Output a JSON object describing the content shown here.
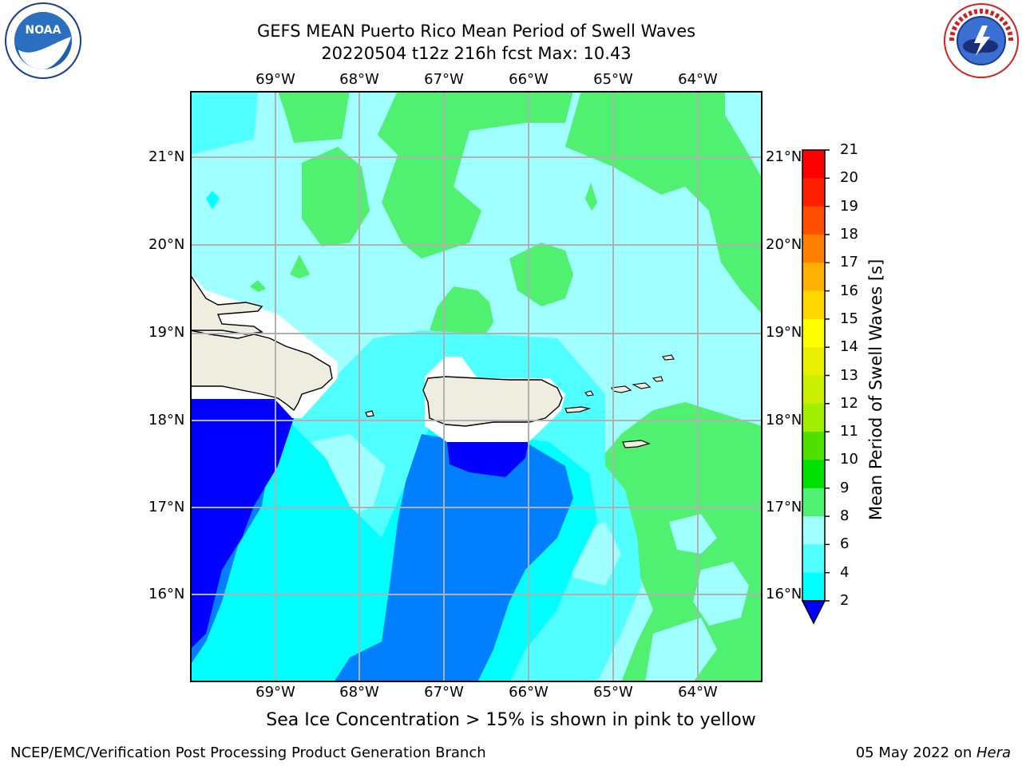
{
  "header": {
    "title_line1": "GEFS MEAN Puerto Rico Mean Period of Swell Waves",
    "title_line2": "20220504 t12z 216h fcst   Max: 10.43"
  },
  "logos": {
    "left": "NOAA",
    "right": "NATIONAL WEATHER SERVICE"
  },
  "map": {
    "lon_labels": [
      "69°W",
      "68°W",
      "67°W",
      "66°W",
      "65°W",
      "64°W"
    ],
    "lat_labels": [
      "21°N",
      "20°N",
      "19°N",
      "18°N",
      "17°N",
      "16°N"
    ]
  },
  "colorbar": {
    "label": "Mean Period of Swell Waves [s]",
    "ticks": [
      "2",
      "4",
      "6",
      "8",
      "9",
      "10",
      "11",
      "12",
      "13",
      "14",
      "15",
      "16",
      "17",
      "18",
      "19",
      "20",
      "21"
    ],
    "colors": [
      "#0000ff",
      "#0080ff",
      "#00ffff",
      "#50ffff",
      "#a0ffff",
      "#50f070",
      "#00e000",
      "#50e000",
      "#a0ee00",
      "#c8f000",
      "#e8f000",
      "#ffff00",
      "#ffd800",
      "#ffb000",
      "#ff8000",
      "#ff5000",
      "#ff2000",
      "#ff0000"
    ]
  },
  "chart_data": {
    "type": "heatmap",
    "title": "GEFS MEAN Puerto Rico Mean Period of Swell Waves",
    "subtitle": "20220504 t12z 216h fcst   Max: 10.43",
    "lon_range": [
      "69.9°W",
      "63.3°W"
    ],
    "lat_range": [
      "15.0°N",
      "21.7°N"
    ],
    "max_value": 10.43,
    "colorbar_label": "Mean Period of Swell Waves [s]",
    "colorbar_levels": [
      2,
      4,
      6,
      8,
      9,
      10,
      11,
      12,
      13,
      14,
      15,
      16,
      17,
      18,
      19,
      20,
      21
    ]
  },
  "notes": {
    "ice": "Sea Ice Concentration > 15% is shown in pink to yellow"
  },
  "footer": {
    "left": "NCEP/EMC/Verification Post Processing Product Generation Branch",
    "date": "05 May 2022 on ",
    "machine": "Hera"
  }
}
